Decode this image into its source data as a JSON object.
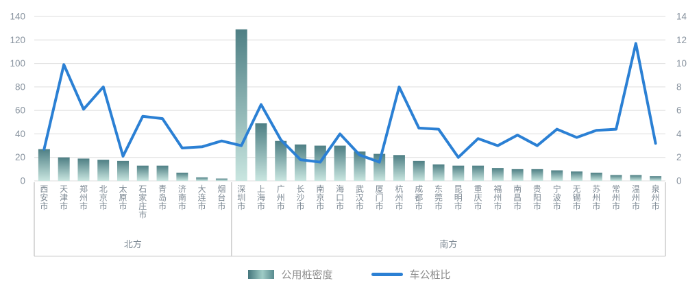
{
  "chart_data": {
    "type": "bar+line combo",
    "title": "",
    "categories": [
      "西安市",
      "天津市",
      "郑州市",
      "北京市",
      "太原市",
      "石家庄市",
      "青岛市",
      "济南市",
      "大连市",
      "烟台市",
      "深圳市",
      "上海市",
      "广州市",
      "长沙市",
      "南京市",
      "海口市",
      "武汉市",
      "厦门市",
      "杭州市",
      "成都市",
      "东莞市",
      "昆明市",
      "重庆市",
      "福州市",
      "南昌市",
      "贵阳市",
      "宁波市",
      "无锡市",
      "苏州市",
      "常州市",
      "温州市",
      "泉州市"
    ],
    "groups": [
      {
        "label": "北方",
        "count": 10
      },
      {
        "label": "南方",
        "count": 22
      }
    ],
    "series": [
      {
        "name": "公用桩密度",
        "type": "bar",
        "axis": "left",
        "values": [
          27,
          20,
          19,
          18,
          17,
          13,
          13,
          7,
          3,
          2,
          129,
          49,
          34,
          31,
          30,
          30,
          25,
          23,
          22,
          17,
          14,
          13,
          13,
          11,
          10,
          10,
          9,
          8,
          7,
          5,
          5,
          4
        ]
      },
      {
        "name": "车公桩比",
        "type": "line",
        "axis": "right",
        "values": [
          2.7,
          9.9,
          6.1,
          8.0,
          2.1,
          5.5,
          5.3,
          2.8,
          2.9,
          3.4,
          3.0,
          6.5,
          3.5,
          1.8,
          1.6,
          4.0,
          2.2,
          1.6,
          8.0,
          4.5,
          4.4,
          2.0,
          3.6,
          3.0,
          3.9,
          3.0,
          4.4,
          3.7,
          4.3,
          4.4,
          11.7,
          3.2
        ]
      }
    ],
    "left_axis": {
      "min": 0,
      "max": 140,
      "step": 20,
      "ticks": [
        "0",
        "20",
        "40",
        "60",
        "80",
        "100",
        "120",
        "140"
      ]
    },
    "right_axis": {
      "min": 0,
      "max": 14,
      "step": 2,
      "ticks": [
        "0",
        "2",
        "4",
        "6",
        "8",
        "10",
        "12",
        "14"
      ]
    },
    "grid": true,
    "legend_position": "bottom",
    "colors": {
      "bar_gradient_top": "#4e7f84",
      "bar_gradient_bottom": "#c9e6e0",
      "line": "#2b80d4",
      "grid_line": "#dcdcdc",
      "axis_text": "#87929e",
      "category_text": "#7c8893",
      "divider": "#cccccc"
    }
  },
  "legend": {
    "items": [
      {
        "label": "公用桩密度"
      },
      {
        "label": "车公桩比"
      }
    ]
  }
}
